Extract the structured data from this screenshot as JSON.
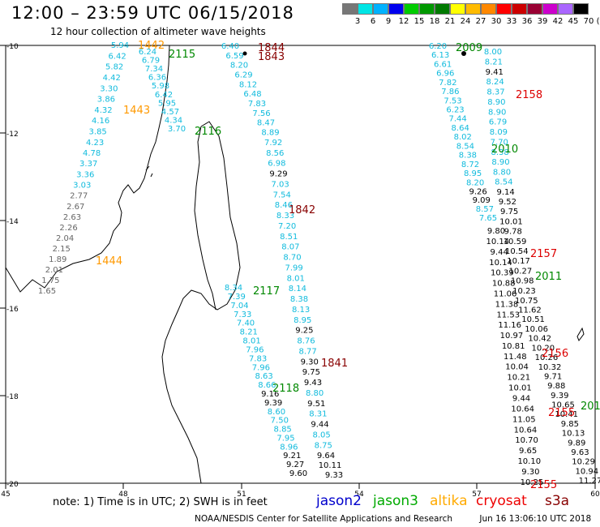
{
  "header": {
    "title": "12:00 – 23:59 UTC 06/15/2018",
    "subtitle": "12 hour collection of altimeter wave heights"
  },
  "color_scale": {
    "colors": [
      "#777777",
      "#00e5e5",
      "#00b2ff",
      "#0000ee",
      "#00cc00",
      "#009900",
      "#007a00",
      "#ffff00",
      "#ffbb00",
      "#ff8800",
      "#ff0000",
      "#cc0000",
      "#990033",
      "#cc00cc",
      "#aa66ff",
      "#000000"
    ],
    "labels": [
      "3",
      "6",
      "9",
      "12",
      "15",
      "18",
      "21",
      "24",
      "27",
      "30",
      "33",
      "36",
      "39",
      "42",
      "45",
      "70",
      "(ft)"
    ]
  },
  "axes": {
    "x_labels": [
      "45",
      "48",
      "51",
      "54",
      "57",
      "60"
    ],
    "y_labels": [
      "-10",
      "-12",
      "-14",
      "-16",
      "-18",
      "-20"
    ]
  },
  "satellite_colors": {
    "jason2": "#0000bb",
    "jason3": "#008800",
    "altika": "#ff9900",
    "cryosat": "#dd0000",
    "s3a": "#880000",
    "light": "#11bbdd",
    "gray": "#666666"
  },
  "pass_labels": [
    {
      "text": "1442",
      "sat": "altika"
    },
    {
      "text": "2115",
      "sat": "jason3"
    },
    {
      "text": "1443",
      "sat": "altika"
    },
    {
      "text": "2116",
      "sat": "jason3"
    },
    {
      "text": "1444",
      "sat": "altika"
    },
    {
      "text": "1844",
      "sat": "s3a"
    },
    {
      "text": "1843",
      "sat": "s3a"
    },
    {
      "text": "1842",
      "sat": "s3a"
    },
    {
      "text": "2117",
      "sat": "jason3"
    },
    {
      "text": "1841",
      "sat": "s3a"
    },
    {
      "text": "2118",
      "sat": "jason3"
    },
    {
      "text": "2009",
      "sat": "jason3"
    },
    {
      "text": "2158",
      "sat": "cryosat"
    },
    {
      "text": "2010",
      "sat": "jason3"
    },
    {
      "text": "2157",
      "sat": "cryosat"
    },
    {
      "text": "2011",
      "sat": "jason3"
    },
    {
      "text": "2156",
      "sat": "cryosat"
    },
    {
      "text": "201",
      "sat": "jason3"
    },
    {
      "text": "2155",
      "sat": "cryosat"
    },
    {
      "text": "2155",
      "sat": "cryosat"
    }
  ],
  "tracks": [
    {
      "name": "altika-west-1",
      "values": [
        {
          "t": "5.94",
          "c": "light"
        },
        {
          "t": "6.42",
          "c": "light"
        },
        {
          "t": "5.82",
          "c": "light"
        },
        {
          "t": "4.42",
          "c": "light"
        },
        {
          "t": "3.30",
          "c": "light"
        },
        {
          "t": "3.86",
          "c": "light"
        },
        {
          "t": "4.32",
          "c": "light"
        },
        {
          "t": "4.16",
          "c": "light"
        },
        {
          "t": "3.85",
          "c": "light"
        },
        {
          "t": "4.23",
          "c": "light"
        },
        {
          "t": "4.78",
          "c": "light"
        },
        {
          "t": "3.37",
          "c": "light"
        },
        {
          "t": "3.36",
          "c": "light"
        },
        {
          "t": "3.03",
          "c": "light"
        },
        {
          "t": "2.77",
          "c": "gray"
        },
        {
          "t": "2.67",
          "c": "gray"
        },
        {
          "t": "2.63",
          "c": "gray"
        },
        {
          "t": "2.26",
          "c": "gray"
        },
        {
          "t": "2.04",
          "c": "gray"
        },
        {
          "t": "2.15",
          "c": "gray"
        },
        {
          "t": "1.89",
          "c": "gray"
        },
        {
          "t": "2.01",
          "c": "gray"
        },
        {
          "t": "1.75",
          "c": "gray"
        },
        {
          "t": "1.65",
          "c": "gray"
        }
      ]
    },
    {
      "name": "jason3-2115",
      "values": [
        {
          "t": "6.24",
          "c": "light"
        },
        {
          "t": "6.79",
          "c": "light"
        },
        {
          "t": "7.34",
          "c": "light"
        },
        {
          "t": "6.36",
          "c": "light"
        },
        {
          "t": "5.98",
          "c": "light"
        },
        {
          "t": "6.42",
          "c": "light"
        },
        {
          "t": "5.95",
          "c": "light"
        },
        {
          "t": "4.57",
          "c": "light"
        },
        {
          "t": "4.34",
          "c": "light"
        },
        {
          "t": "3.70",
          "c": "light"
        }
      ]
    },
    {
      "name": "s3a-1844",
      "values": [
        {
          "t": "6.40",
          "c": "light"
        },
        {
          "t": "6.59",
          "c": "light"
        },
        {
          "t": "8.20",
          "c": "light"
        },
        {
          "t": "6.29",
          "c": "light"
        },
        {
          "t": "8.12",
          "c": "light"
        },
        {
          "t": "6.48",
          "c": "light"
        },
        {
          "t": "7.83",
          "c": "light"
        },
        {
          "t": "7.56",
          "c": "light"
        },
        {
          "t": "8.47",
          "c": "light"
        },
        {
          "t": "8.89",
          "c": "light"
        },
        {
          "t": "7.92",
          "c": "light"
        },
        {
          "t": "8.56",
          "c": "light"
        },
        {
          "t": "6.98",
          "c": "light"
        },
        {
          "t": "9.29",
          "c": "blue"
        },
        {
          "t": "7.03",
          "c": "light"
        },
        {
          "t": "7.54",
          "c": "light"
        },
        {
          "t": "8.46",
          "c": "light"
        },
        {
          "t": "8.33",
          "c": "light"
        },
        {
          "t": "7.20",
          "c": "light"
        },
        {
          "t": "8.51",
          "c": "light"
        },
        {
          "t": "8.07",
          "c": "light"
        },
        {
          "t": "8.70",
          "c": "light"
        },
        {
          "t": "7.99",
          "c": "light"
        },
        {
          "t": "8.01",
          "c": "light"
        },
        {
          "t": "8.14",
          "c": "light"
        },
        {
          "t": "8.38",
          "c": "light"
        },
        {
          "t": "8.13",
          "c": "light"
        },
        {
          "t": "8.95",
          "c": "light"
        },
        {
          "t": "9.25",
          "c": "blue"
        },
        {
          "t": "8.76",
          "c": "light"
        },
        {
          "t": "8.77",
          "c": "light"
        },
        {
          "t": "9.30",
          "c": "blue"
        },
        {
          "t": "9.75",
          "c": "blue"
        },
        {
          "t": "9.43",
          "c": "blue"
        },
        {
          "t": "8.80",
          "c": "light"
        },
        {
          "t": "9.51",
          "c": "blue"
        },
        {
          "t": "8.31",
          "c": "light"
        },
        {
          "t": "9.44",
          "c": "blue"
        },
        {
          "t": "8.05",
          "c": "light"
        },
        {
          "t": "8.75",
          "c": "light"
        },
        {
          "t": "9.64",
          "c": "blue"
        },
        {
          "t": "10.11",
          "c": "blue"
        },
        {
          "t": "9.33",
          "c": "blue"
        }
      ]
    },
    {
      "name": "jason3-2117",
      "values": [
        {
          "t": "8.34",
          "c": "light"
        },
        {
          "t": "7.39",
          "c": "light"
        },
        {
          "t": "7.04",
          "c": "light"
        },
        {
          "t": "7.33",
          "c": "light"
        },
        {
          "t": "7.40",
          "c": "light"
        },
        {
          "t": "8.21",
          "c": "light"
        },
        {
          "t": "8.01",
          "c": "light"
        },
        {
          "t": "7.96",
          "c": "light"
        },
        {
          "t": "7.83",
          "c": "light"
        },
        {
          "t": "7.96",
          "c": "light"
        },
        {
          "t": "8.63",
          "c": "light"
        },
        {
          "t": "8.66",
          "c": "light"
        },
        {
          "t": "9.16",
          "c": "blue"
        },
        {
          "t": "9.39",
          "c": "blue"
        },
        {
          "t": "8.60",
          "c": "light"
        },
        {
          "t": "7.50",
          "c": "light"
        },
        {
          "t": "8.85",
          "c": "light"
        },
        {
          "t": "7.95",
          "c": "light"
        },
        {
          "t": "8.96",
          "c": "light"
        },
        {
          "t": "9.21",
          "c": "blue"
        },
        {
          "t": "9.27",
          "c": "blue"
        },
        {
          "t": "9.60",
          "c": "blue"
        }
      ]
    },
    {
      "name": "jason3-2009",
      "values": [
        {
          "t": "6.20",
          "c": "light"
        },
        {
          "t": "6.13",
          "c": "light"
        },
        {
          "t": "6.61",
          "c": "light"
        },
        {
          "t": "6.96",
          "c": "light"
        },
        {
          "t": "7.82",
          "c": "light"
        },
        {
          "t": "7.86",
          "c": "light"
        },
        {
          "t": "7.53",
          "c": "light"
        },
        {
          "t": "6.23",
          "c": "light"
        },
        {
          "t": "7.44",
          "c": "light"
        },
        {
          "t": "8.64",
          "c": "light"
        },
        {
          "t": "8.02",
          "c": "light"
        },
        {
          "t": "8.54",
          "c": "light"
        },
        {
          "t": "8.38",
          "c": "light"
        },
        {
          "t": "8.72",
          "c": "light"
        },
        {
          "t": "8.95",
          "c": "light"
        },
        {
          "t": "8.20",
          "c": "light"
        },
        {
          "t": "9.26",
          "c": "blue"
        },
        {
          "t": "9.09",
          "c": "blue"
        },
        {
          "t": "8.57",
          "c": "light"
        },
        {
          "t": "7.65",
          "c": "light"
        }
      ]
    },
    {
      "name": "cryosat-2158",
      "values": [
        {
          "t": "8.00",
          "c": "light"
        },
        {
          "t": "8.21",
          "c": "light"
        },
        {
          "t": "9.41",
          "c": "blue"
        },
        {
          "t": "8.24",
          "c": "light"
        },
        {
          "t": "8.37",
          "c": "light"
        },
        {
          "t": "8.90",
          "c": "light"
        },
        {
          "t": "8.90",
          "c": "light"
        },
        {
          "t": "6.79",
          "c": "light"
        },
        {
          "t": "8.09",
          "c": "light"
        },
        {
          "t": "7.70",
          "c": "light"
        },
        {
          "t": "8.38",
          "c": "light"
        },
        {
          "t": "8.90",
          "c": "light"
        },
        {
          "t": "8.80",
          "c": "light"
        },
        {
          "t": "8.54",
          "c": "light"
        },
        {
          "t": "9.14",
          "c": "blue"
        },
        {
          "t": "9.52",
          "c": "blue"
        },
        {
          "t": "9.75",
          "c": "blue"
        },
        {
          "t": "10.01",
          "c": "blue"
        },
        {
          "t": "9.78",
          "c": "blue"
        },
        {
          "t": "10.59",
          "c": "blue"
        },
        {
          "t": "10.54",
          "c": "blue"
        },
        {
          "t": "10.17",
          "c": "blue"
        },
        {
          "t": "10.27",
          "c": "blue"
        },
        {
          "t": "10.98",
          "c": "blue"
        },
        {
          "t": "10.23",
          "c": "blue"
        },
        {
          "t": "10.75",
          "c": "blue"
        },
        {
          "t": "11.62",
          "c": "blue"
        },
        {
          "t": "10.51",
          "c": "blue"
        },
        {
          "t": "10.06",
          "c": "blue"
        },
        {
          "t": "10.42",
          "c": "blue"
        },
        {
          "t": "10.20",
          "c": "blue"
        },
        {
          "t": "10.26",
          "c": "blue"
        },
        {
          "t": "10.32",
          "c": "blue"
        },
        {
          "t": "9.71",
          "c": "blue"
        },
        {
          "t": "9.88",
          "c": "blue"
        },
        {
          "t": "9.39",
          "c": "blue"
        },
        {
          "t": "10.65",
          "c": "blue"
        },
        {
          "t": "10.41",
          "c": "blue"
        },
        {
          "t": "9.85",
          "c": "blue"
        },
        {
          "t": "10.13",
          "c": "blue"
        },
        {
          "t": "9.89",
          "c": "blue"
        },
        {
          "t": "9.63",
          "c": "blue"
        },
        {
          "t": "10.29",
          "c": "blue"
        },
        {
          "t": "10.94",
          "c": "blue"
        },
        {
          "t": "11.27",
          "c": "blue"
        }
      ]
    },
    {
      "name": "jason2-west",
      "values": [
        {
          "t": "9.80",
          "c": "blue"
        },
        {
          "t": "10.14",
          "c": "blue"
        },
        {
          "t": "9.44",
          "c": "blue"
        },
        {
          "t": "10.14",
          "c": "blue"
        },
        {
          "t": "10.39",
          "c": "blue"
        },
        {
          "t": "10.88",
          "c": "blue"
        },
        {
          "t": "11.06",
          "c": "blue"
        },
        {
          "t": "11.38",
          "c": "blue"
        },
        {
          "t": "11.53",
          "c": "blue"
        },
        {
          "t": "11.16",
          "c": "blue"
        },
        {
          "t": "10.97",
          "c": "blue"
        },
        {
          "t": "10.81",
          "c": "blue"
        },
        {
          "t": "11.48",
          "c": "blue"
        },
        {
          "t": "10.04",
          "c": "blue"
        },
        {
          "t": "10.21",
          "c": "blue"
        },
        {
          "t": "10.01",
          "c": "blue"
        },
        {
          "t": "9.44",
          "c": "blue"
        },
        {
          "t": "10.64",
          "c": "blue"
        },
        {
          "t": "11.05",
          "c": "blue"
        },
        {
          "t": "10.64",
          "c": "blue"
        },
        {
          "t": "10.70",
          "c": "blue"
        },
        {
          "t": "9.65",
          "c": "blue"
        },
        {
          "t": "10.10",
          "c": "blue"
        },
        {
          "t": "9.30",
          "c": "blue"
        },
        {
          "t": "10.25",
          "c": "blue"
        }
      ]
    }
  ],
  "note": "note: 1) Time is in UTC; 2) SWH is in feet",
  "legend": [
    {
      "label": "jason2",
      "color": "#0000cc"
    },
    {
      "label": "jason3",
      "color": "#00aa00"
    },
    {
      "label": "altika",
      "color": "#ffaa00"
    },
    {
      "label": "cryosat",
      "color": "#ee0000"
    },
    {
      "label": "s3a",
      "color": "#880000"
    }
  ],
  "footer": {
    "credit": "NOAA/NESDIS Center for Satellite Applications and Research",
    "timestamp": "Jun 16 13:06:10 UTC 2018"
  }
}
